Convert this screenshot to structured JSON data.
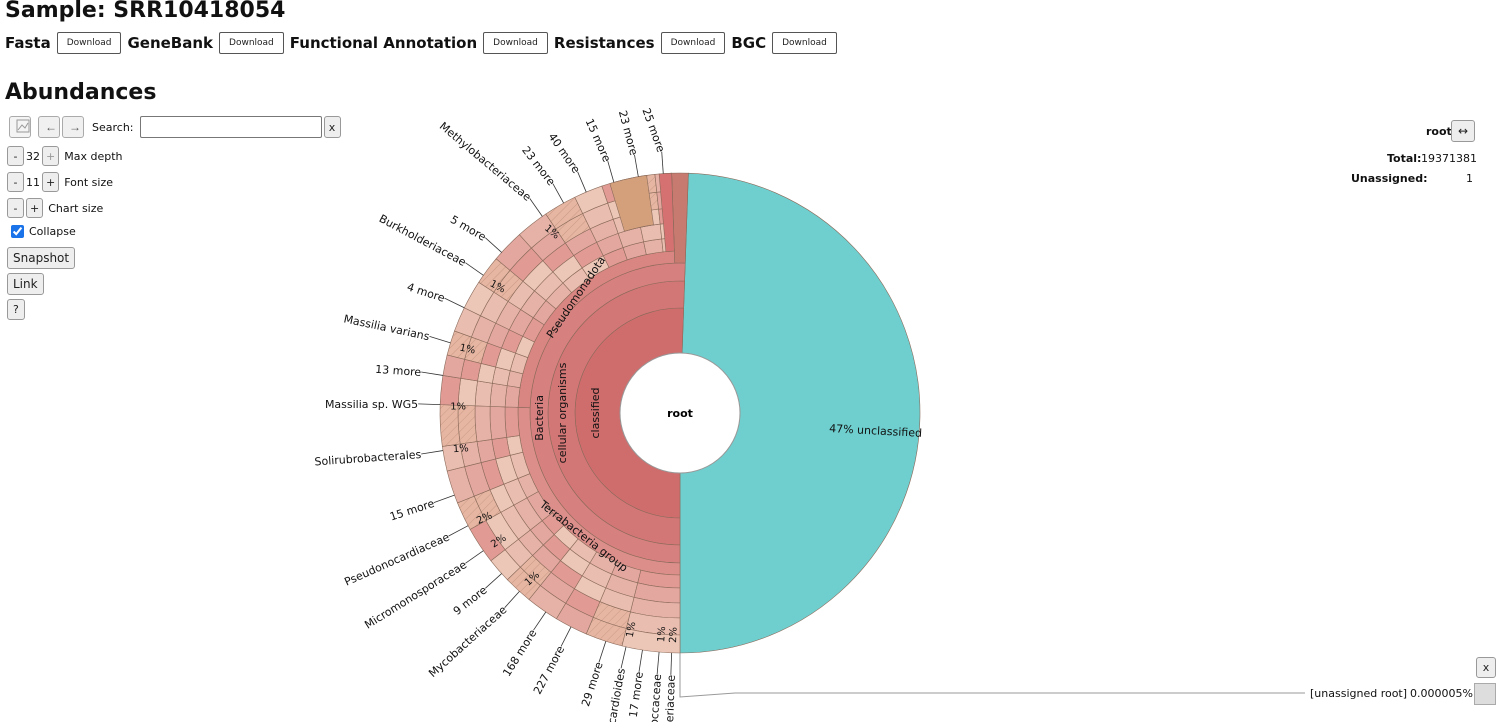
{
  "header": {
    "title": "Sample: SRR10418054"
  },
  "downloads": [
    {
      "label": "Fasta",
      "button": "Download"
    },
    {
      "label": "GeneBank",
      "button": "Download"
    },
    {
      "label": "Functional Annotation",
      "button": "Download"
    },
    {
      "label": "Resistances",
      "button": "Download"
    },
    {
      "label": "BGC",
      "button": "Download"
    }
  ],
  "abundances": {
    "title": "Abundances"
  },
  "controls": {
    "back": "←",
    "forward": "→",
    "search_label": "Search:",
    "search_value": "",
    "search_clear": "x",
    "minus": "-",
    "plus": "+",
    "max_depth_value": "32",
    "max_depth_label": "Max depth",
    "font_size_value": "11",
    "font_size_label": "Font size",
    "chart_size_label": "Chart size",
    "collapse_label": "Collapse",
    "collapse_checked": true,
    "snapshot": "Snapshot",
    "link": "Link",
    "help": "?"
  },
  "details": {
    "selected": "root",
    "swap_icon": "↔",
    "total_label": "Total:",
    "total_value": "19371381",
    "unassigned_label": "Unassigned:",
    "unassigned_value": "1"
  },
  "hover": {
    "close": "x",
    "label": "[unassigned root]",
    "percent": "0.000005%"
  },
  "colors": {
    "unclassified": "#6fcfcf",
    "classified": "#d67171",
    "wedge_light": "#e8b8a4",
    "stroke": "#8a6a5a"
  },
  "chart_data": {
    "type": "sunburst",
    "root": "root",
    "inner_labels": [
      "classified",
      "cellular organisms",
      "Bacteria",
      "Pseudomonadota",
      "Terrabacteria group"
    ],
    "slices": [
      {
        "name": "unclassified",
        "percent": 47,
        "percent_label": "47%"
      },
      {
        "name": "classified",
        "percent": 53
      }
    ],
    "outer_labels": [
      {
        "name": "25 more"
      },
      {
        "name": "23 more"
      },
      {
        "name": "15 more"
      },
      {
        "name": "40 more"
      },
      {
        "name": "23 more"
      },
      {
        "name": "Methylobacteriaceae",
        "percent": "1%"
      },
      {
        "name": "5 more"
      },
      {
        "name": "Burkholderiaceae",
        "percent": "1%"
      },
      {
        "name": "4 more"
      },
      {
        "name": "Massilia varians",
        "percent": "1%"
      },
      {
        "name": "13 more"
      },
      {
        "name": "Massilia sp. WG5",
        "percent": "1%"
      },
      {
        "name": "Solirubrobacterales",
        "percent": "1%"
      },
      {
        "name": "15 more"
      },
      {
        "name": "Pseudonocardiaceae",
        "percent": "2%"
      },
      {
        "name": "Micromonosporaceae",
        "percent": "2%"
      },
      {
        "name": "9 more"
      },
      {
        "name": "Mycobacteriaceae",
        "percent": "1%"
      },
      {
        "name": "168 more"
      },
      {
        "name": "227 more"
      },
      {
        "name": "29 more"
      },
      {
        "name": "Nocardioides",
        "percent": "1%"
      },
      {
        "name": "17 more"
      },
      {
        "name": "rococcaceae",
        "percent": "1%"
      },
      {
        "name": "bacteriaceae",
        "percent": "2%"
      }
    ]
  }
}
